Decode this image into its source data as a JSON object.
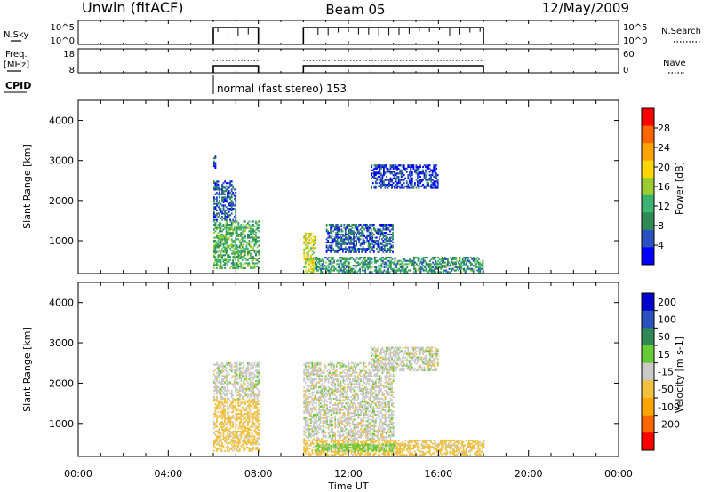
{
  "header": {
    "station": "Unwin (fitACF)",
    "beam": "Beam 05",
    "date": "12/May/2009"
  },
  "top_panels": {
    "nsky": {
      "left_label": "N.Sky",
      "left_ticks": [
        "10^5",
        "10^0"
      ],
      "right_ticks": [
        "10^5",
        "10^0"
      ],
      "right_label": "N.Search"
    },
    "freq": {
      "left_label_line1": "Freq.",
      "left_label_line2": "[MHz]",
      "left_ticks": [
        "18",
        "8"
      ],
      "right_ticks": [
        "60",
        "0"
      ],
      "right_label": "Nave"
    },
    "cpid": {
      "label": "CPID",
      "text": "normal (fast stereo) 153",
      "start_hour": 6
    }
  },
  "x_axis": {
    "label": "Time UT",
    "ticks": [
      "00:00",
      "04:00",
      "08:00",
      "12:00",
      "16:00",
      "20:00",
      "00:00"
    ],
    "tick_hours": [
      0,
      4,
      8,
      12,
      16,
      20,
      24
    ],
    "range_hours": [
      0,
      24
    ]
  },
  "colors": {
    "power": [
      "#0000ff",
      "#2a52be",
      "#2e8b57",
      "#3cb371",
      "#9acd32",
      "#ffd700",
      "#ffa500",
      "#ff6600",
      "#ff0000"
    ],
    "velocity": [
      "#ff0000",
      "#ff6600",
      "#ffa500",
      "#f0c040",
      "#c8c8c8",
      "#66cc33",
      "#2e8b57",
      "#2a52be",
      "#0000cc"
    ]
  },
  "chart_data": [
    {
      "type": "heatmap",
      "name": "power",
      "ylabel": "Slant Range [km]",
      "yticks": [
        "1000",
        "2000",
        "3000",
        "4000"
      ],
      "ytick_values": [
        1000,
        2000,
        3000,
        4000
      ],
      "ylim": [
        180,
        4500
      ],
      "colorbar_label": "Power [dB]",
      "colorbar_ticks": [
        "4",
        "8",
        "12",
        "16",
        "20",
        "24",
        "28"
      ],
      "colorbar_tick_values": [
        4,
        8,
        12,
        16,
        20,
        24,
        28
      ],
      "colorbar_range": [
        0,
        32
      ],
      "data_windows_hours": [
        [
          6,
          8
        ],
        [
          10,
          18
        ]
      ],
      "regions": [
        {
          "t": [
            6.0,
            8.0
          ],
          "r": [
            300,
            1500
          ],
          "value": 12
        },
        {
          "t": [
            6.0,
            7.0
          ],
          "r": [
            1500,
            2500
          ],
          "value": 6
        },
        {
          "t": [
            6.0,
            6.1
          ],
          "r": [
            2800,
            3100
          ],
          "value": 6
        },
        {
          "t": [
            10.0,
            10.5
          ],
          "r": [
            200,
            1200
          ],
          "value": 18
        },
        {
          "t": [
            10.5,
            18.0
          ],
          "r": [
            200,
            600
          ],
          "value": 10
        },
        {
          "t": [
            11.0,
            14.0
          ],
          "r": [
            700,
            1400
          ],
          "value": 6
        },
        {
          "t": [
            13.0,
            16.0
          ],
          "r": [
            2300,
            2900
          ],
          "value": 4
        }
      ]
    },
    {
      "type": "heatmap",
      "name": "velocity",
      "ylabel": "Slant Range [km]",
      "yticks": [
        "1000",
        "2000",
        "3000",
        "4000"
      ],
      "ytick_values": [
        1000,
        2000,
        3000,
        4000
      ],
      "ylim": [
        180,
        4500
      ],
      "colorbar_label": "Velocity [m s-1]",
      "colorbar_ticks": [
        "200",
        "100",
        "50",
        "15",
        "-15",
        "-50",
        "-100",
        "-200"
      ],
      "colorbar_tick_values": [
        200,
        100,
        50,
        15,
        -15,
        -50,
        -100,
        -200
      ],
      "data_windows_hours": [
        [
          6,
          8
        ],
        [
          10,
          18
        ]
      ],
      "regions": [
        {
          "t": [
            6.0,
            8.0
          ],
          "r": [
            300,
            1600
          ],
          "value": -30
        },
        {
          "t": [
            6.0,
            8.0
          ],
          "r": [
            1600,
            2500
          ],
          "value": 0
        },
        {
          "t": [
            10.0,
            18.0
          ],
          "r": [
            200,
            600
          ],
          "value": -30
        },
        {
          "t": [
            10.5,
            14.0
          ],
          "r": [
            300,
            500
          ],
          "value": 30
        },
        {
          "t": [
            10.0,
            14.0
          ],
          "r": [
            600,
            2500
          ],
          "value": 0
        },
        {
          "t": [
            13.0,
            16.0
          ],
          "r": [
            2300,
            2900
          ],
          "value": 0
        }
      ]
    }
  ]
}
